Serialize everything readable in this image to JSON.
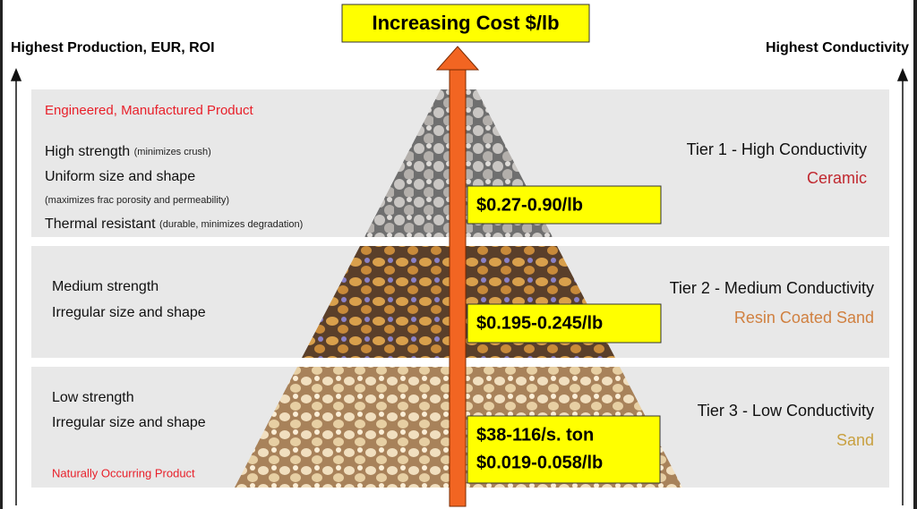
{
  "title": "Increasing Cost $/lb",
  "left_axis_label": "Highest Production, EUR, ROI",
  "right_axis_label": "Highest Conductivity",
  "tiers": [
    {
      "heading": "Engineered, Manufactured Product",
      "lines": [
        {
          "text": "High strength",
          "note": "(minimizes crush)"
        },
        {
          "text": "Uniform size and shape"
        },
        {
          "note": "(maximizes frac porosity and permeability)"
        },
        {
          "text": "Thermal resistant",
          "note": "(durable, minimizes degradation)"
        }
      ],
      "tier_label": "Tier 1 - High Conductivity",
      "material": "Ceramic",
      "price": [
        "$0.27-0.90/lb"
      ]
    },
    {
      "lines": [
        {
          "text": "Medium strength"
        },
        {
          "text": "Irregular size and shape"
        }
      ],
      "tier_label": "Tier 2 - Medium Conductivity",
      "material": "Resin Coated Sand",
      "price": [
        "$0.195-0.245/lb"
      ]
    },
    {
      "lines": [
        {
          "text": "Low strength"
        },
        {
          "text": "Irregular size and shape"
        }
      ],
      "footer": "Naturally Occurring Product",
      "tier_label": "Tier 3 - Low Conductivity",
      "material": "Sand",
      "price": [
        "$38-116/s. ton",
        "$0.019-0.058/lb"
      ]
    }
  ]
}
